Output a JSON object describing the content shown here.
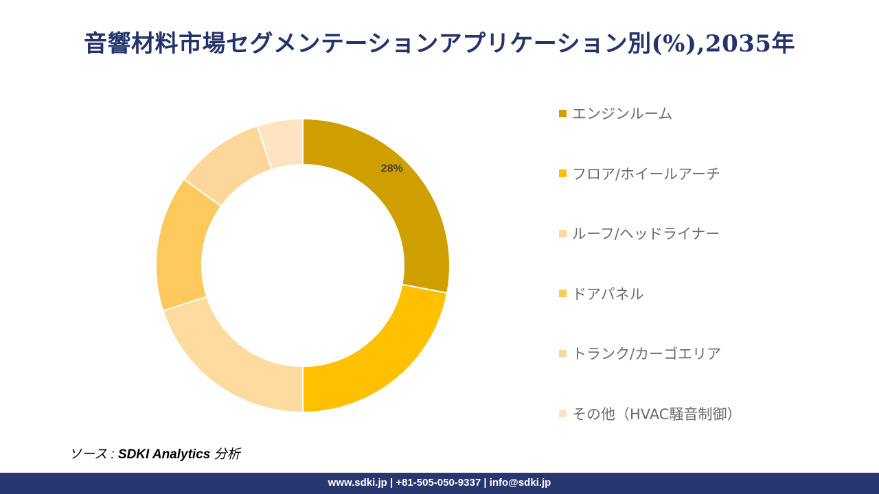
{
  "title": "音響材料市場セグメンテーションアプリケーション別(%),2035年",
  "chart_data": {
    "type": "pie",
    "donut": true,
    "title": "音響材料市場セグメンテーションアプリケーション別(%),2035年",
    "categories": [
      "エンジンルーム",
      "フロア/ホイールアーチ",
      "ルーフ/ヘッドライナー",
      "ドアパネル",
      "トランク/カーゴエリア",
      "その他（HVAC騒音制御）"
    ],
    "values": [
      28,
      22,
      20,
      15,
      10,
      5
    ],
    "colors": [
      "#CF9F00",
      "#FFC000",
      "#FDDA9E",
      "#FEC95C",
      "#FDD699",
      "#FDE3C0"
    ],
    "data_labels": [
      "28%",
      "",
      "",
      "",
      "",
      ""
    ],
    "legend_position": "right"
  },
  "source": {
    "prefix": "ソース : ",
    "name": "SDKI Analytics",
    "suffix": " 分析"
  },
  "footer": "www.sdki.jp | +81-505-050-9337 | info@sdki.jp"
}
